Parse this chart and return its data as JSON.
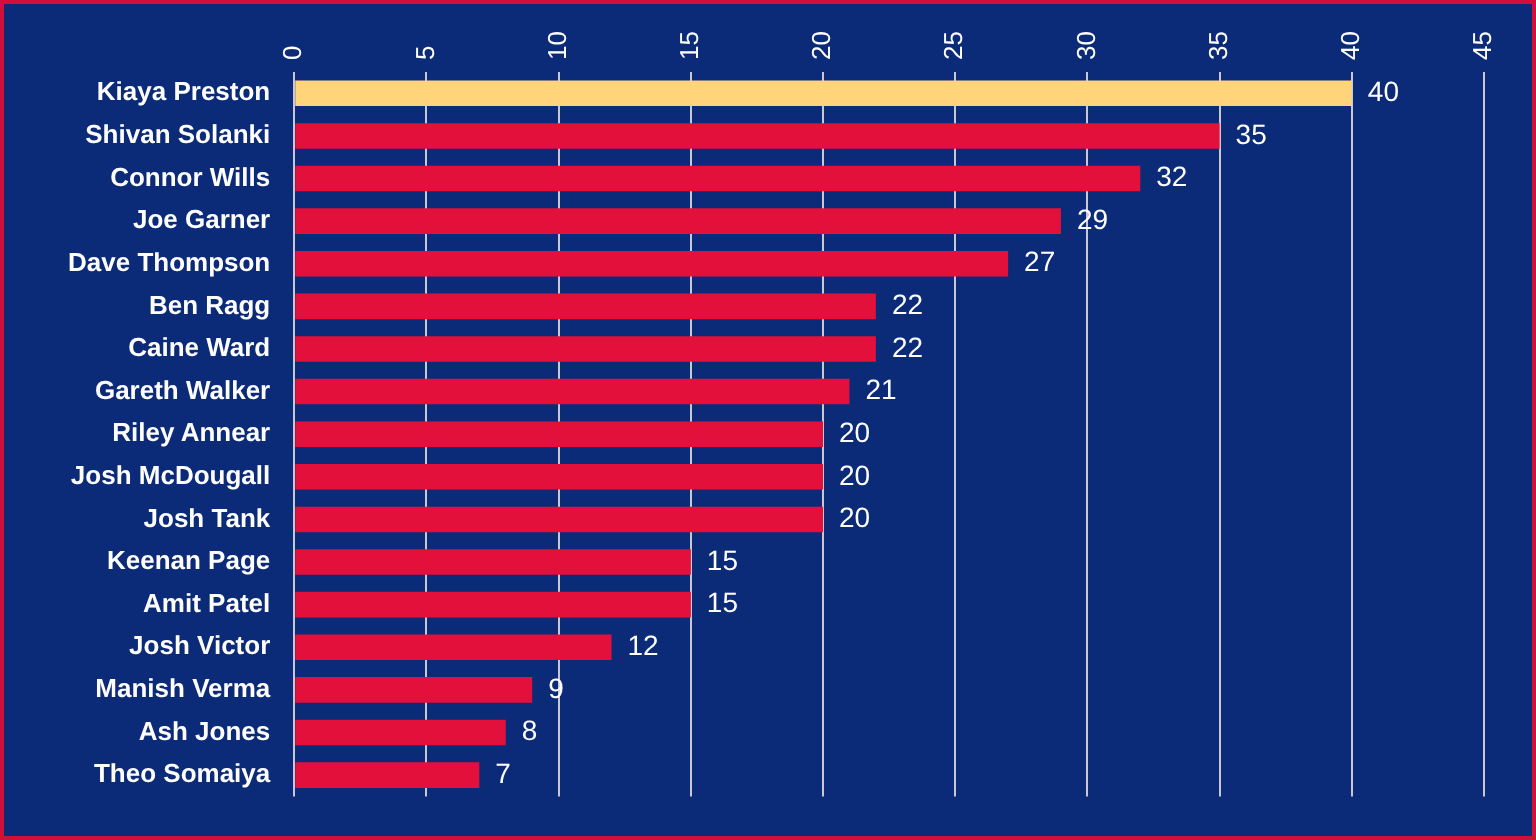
{
  "chart_data": {
    "type": "bar",
    "orientation": "horizontal",
    "categories": [
      "Kiaya Preston",
      "Shivan Solanki",
      "Connor Wills",
      "Joe Garner",
      "Dave Thompson",
      "Ben Ragg",
      "Caine Ward",
      "Gareth Walker",
      "Riley Annear",
      "Josh McDougall",
      "Josh Tank",
      "Keenan Page",
      "Amit Patel",
      "Josh Victor",
      "Manish Verma",
      "Ash Jones",
      "Theo Somaiya"
    ],
    "values": [
      40,
      35,
      32,
      29,
      27,
      22,
      22,
      21,
      20,
      20,
      20,
      15,
      15,
      12,
      9,
      8,
      7
    ],
    "colors": [
      "#ffd47a",
      "#e3103c",
      "#e3103c",
      "#e3103c",
      "#e3103c",
      "#e3103c",
      "#e3103c",
      "#e3103c",
      "#e3103c",
      "#e3103c",
      "#e3103c",
      "#e3103c",
      "#e3103c",
      "#e3103c",
      "#e3103c",
      "#e3103c",
      "#e3103c"
    ],
    "xlim": [
      0,
      45
    ],
    "xticks": [
      0,
      5,
      10,
      15,
      20,
      25,
      30,
      35,
      40,
      45
    ],
    "grid": "x",
    "legend": false,
    "data_labels": true
  }
}
